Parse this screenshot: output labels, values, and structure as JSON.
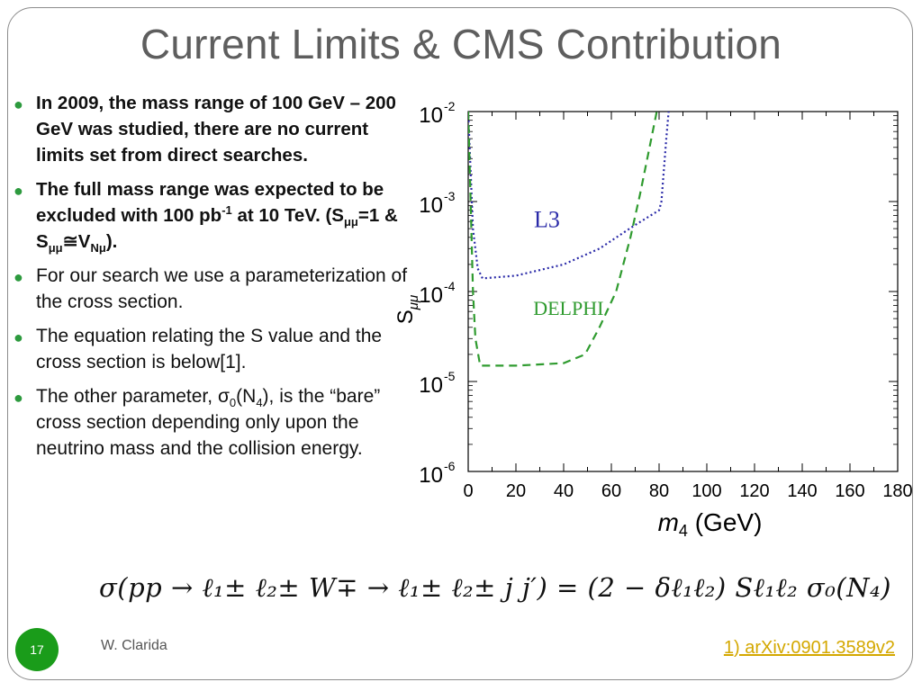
{
  "slide": {
    "title": "Current Limits & CMS Contribution",
    "page_number": "17",
    "author": "W. Clarida",
    "reference": "1) arXiv:0901.3589v2"
  },
  "bullets": [
    {
      "text": "In 2009, the mass range of 100 GeV – 200 GeV was studied, there are no current limits set from direct searches."
    },
    {
      "p1": "The full mass range was expected to be excluded with 100 pb",
      "sup1": "-1",
      "p2": " at 10 TeV. (S",
      "sub1": "μμ",
      "p3": "=1 & S",
      "sub2": "μμ",
      "p4": "≅V",
      "sub3": "Nμ",
      "p5": ")."
    },
    {
      "text": "For our search we use a parameterization of the cross section."
    },
    {
      "text": "The equation relating the S value and the cross section is below[1]."
    },
    {
      "p1": "The other parameter, σ",
      "sub1": "0",
      "p2": "(N",
      "sub2": "4",
      "p3": "), is the “bare” cross section depending only upon the neutrino mass and the collision energy."
    }
  ],
  "equation": {
    "text": "σ(pp → ℓ₁± ℓ₂± W∓ → ℓ₁± ℓ₂± j j′) = (2 − δℓ₁ℓ₂) Sℓ₁ℓ₂ σ₀(N₄)"
  },
  "chart_data": {
    "type": "line",
    "ylabel": "Sμμ",
    "xlabel": "m4 (GeV)",
    "xlim": [
      0,
      180
    ],
    "x_ticks": [
      0,
      20,
      40,
      60,
      80,
      100,
      120,
      140,
      160,
      180
    ],
    "y_scale": "log",
    "ylim": [
      1e-06,
      0.01
    ],
    "y_ticks": [
      {
        "value": 0.01,
        "base": "10",
        "exp": "-2"
      },
      {
        "value": 0.001,
        "base": "10",
        "exp": "-3"
      },
      {
        "value": 0.0001,
        "base": "10",
        "exp": "-4"
      },
      {
        "value": 1e-05,
        "base": "10",
        "exp": "-5"
      },
      {
        "value": 1e-06,
        "base": "10",
        "exp": "-6"
      }
    ],
    "series": [
      {
        "name": "L3",
        "color": "#2a2aa8",
        "dash": "dotted",
        "x": [
          0,
          2,
          4,
          6,
          20,
          40,
          55,
          70,
          80,
          81,
          83,
          84
        ],
        "y": [
          0.01,
          0.0005,
          0.00018,
          0.00014,
          0.00015,
          0.0002,
          0.0003,
          0.00055,
          0.0008,
          0.001,
          0.005,
          0.01
        ]
      },
      {
        "name": "DELPHI",
        "color": "#2f9b2f",
        "dash": "dashed",
        "x": [
          0,
          1,
          2,
          3,
          5,
          20,
          40,
          49,
          55,
          62,
          68,
          72,
          76,
          79
        ],
        "y": [
          0.01,
          0.001,
          0.0001,
          3e-05,
          1.5e-05,
          1.5e-05,
          1.6e-05,
          2e-05,
          4e-05,
          0.0001,
          0.0004,
          0.0012,
          0.004,
          0.01
        ]
      }
    ],
    "labels": [
      {
        "text": "L3",
        "color": "#2a2aa8"
      },
      {
        "text": "DELPHI",
        "color": "#2f9b2f"
      }
    ]
  }
}
